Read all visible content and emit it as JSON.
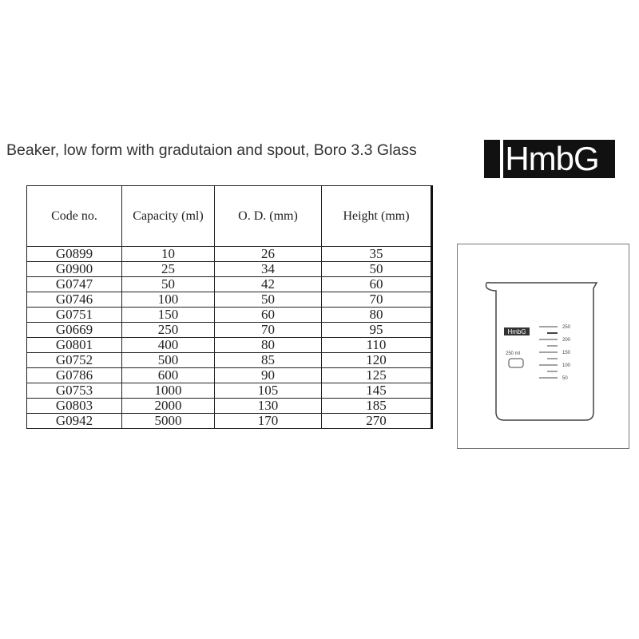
{
  "title": "Beaker, low form with gradutaion and spout, Boro 3.3 Glass",
  "logo": "HmbG",
  "table": {
    "headers": [
      "Code no.",
      "Capacity (ml)",
      "O. D. (mm)",
      "Height  (mm)"
    ],
    "rows": [
      [
        "G0899",
        "10",
        "26",
        "35"
      ],
      [
        "G0900",
        "25",
        "34",
        "50"
      ],
      [
        "G0747",
        "50",
        "42",
        "60"
      ],
      [
        "G0746",
        "100",
        "50",
        "70"
      ],
      [
        "G0751",
        "150",
        "60",
        "80"
      ],
      [
        "G0669",
        "250",
        "70",
        "95"
      ],
      [
        "G0801",
        "400",
        "80",
        "110"
      ],
      [
        "G0752",
        "500",
        "85",
        "120"
      ],
      [
        "G0786",
        "600",
        "90",
        "125"
      ],
      [
        "G0753",
        "1000",
        "105",
        "145"
      ],
      [
        "G0803",
        "2000",
        "130",
        "185"
      ],
      [
        "G0942",
        "5000",
        "170",
        "270"
      ]
    ]
  },
  "drawing": {
    "logo": "HmbG",
    "capacity": "250 ml",
    "marks": [
      "250",
      "200",
      "150",
      "100",
      "50"
    ]
  }
}
